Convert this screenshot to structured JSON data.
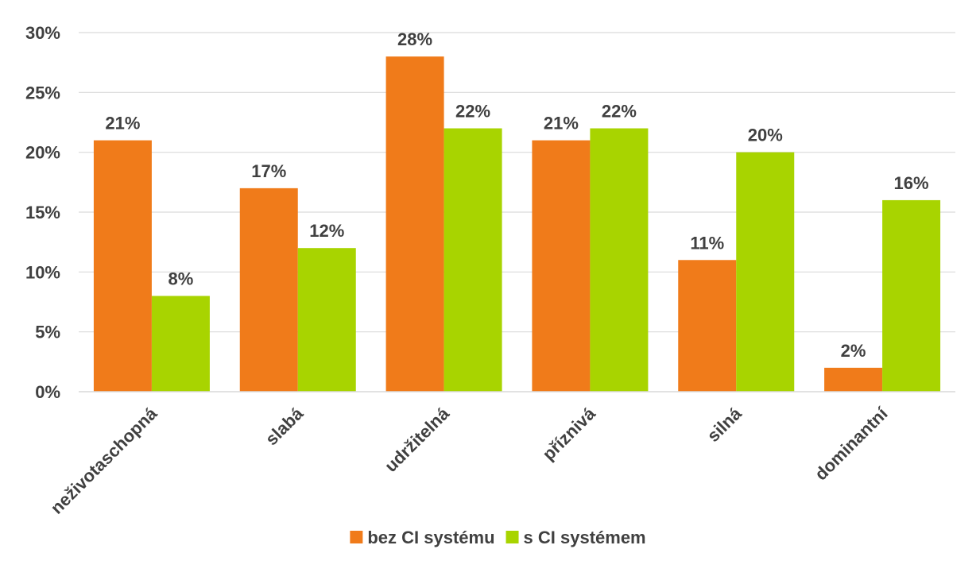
{
  "chart_data": {
    "type": "bar",
    "categories": [
      "neživotaschopná",
      "slabá",
      "udržitelná",
      "příznivá",
      "silná",
      "dominantní"
    ],
    "series": [
      {
        "name": "bez CI systému",
        "values": [
          21,
          17,
          28,
          21,
          11,
          2
        ],
        "color": "#F07B1A"
      },
      {
        "name": "s CI systémem",
        "values": [
          8,
          12,
          22,
          22,
          20,
          16
        ],
        "color": "#A8D400"
      }
    ],
    "y_ticks": [
      "0%",
      "5%",
      "10%",
      "15%",
      "20%",
      "25%",
      "30%"
    ],
    "ylim": [
      0,
      30
    ],
    "value_suffix": "%",
    "grid": true,
    "legend_position": "bottom"
  }
}
